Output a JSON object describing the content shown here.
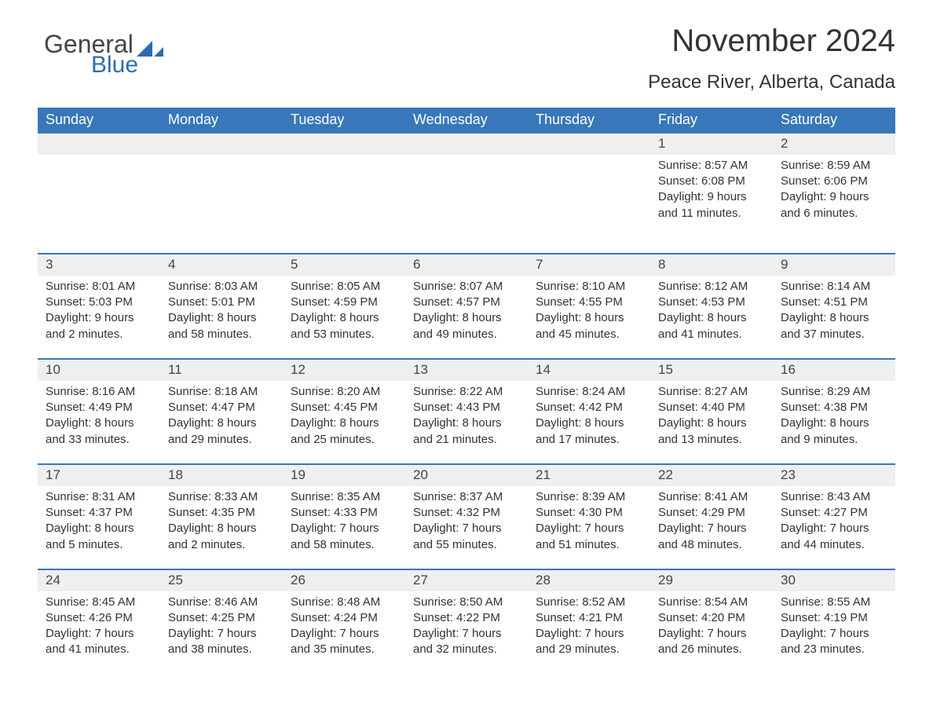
{
  "logo": {
    "text1": "General",
    "text2": "Blue",
    "accent_color": "#2d6bb0"
  },
  "title": "November 2024",
  "location": "Peace River, Alberta, Canada",
  "header_bg": "#3877b9",
  "header_fg": "#ffffff",
  "daynum_bg": "#efefef",
  "daynum_border": "#3877b9",
  "text_color": "#333333",
  "weekdays": [
    "Sunday",
    "Monday",
    "Tuesday",
    "Wednesday",
    "Thursday",
    "Friday",
    "Saturday"
  ],
  "weeks": [
    [
      null,
      null,
      null,
      null,
      null,
      {
        "day": "1",
        "sunrise": "Sunrise: 8:57 AM",
        "sunset": "Sunset: 6:08 PM",
        "day1": "Daylight: 9 hours",
        "day2": "and 11 minutes."
      },
      {
        "day": "2",
        "sunrise": "Sunrise: 8:59 AM",
        "sunset": "Sunset: 6:06 PM",
        "day1": "Daylight: 9 hours",
        "day2": "and 6 minutes."
      }
    ],
    [
      {
        "day": "3",
        "sunrise": "Sunrise: 8:01 AM",
        "sunset": "Sunset: 5:03 PM",
        "day1": "Daylight: 9 hours",
        "day2": "and 2 minutes."
      },
      {
        "day": "4",
        "sunrise": "Sunrise: 8:03 AM",
        "sunset": "Sunset: 5:01 PM",
        "day1": "Daylight: 8 hours",
        "day2": "and 58 minutes."
      },
      {
        "day": "5",
        "sunrise": "Sunrise: 8:05 AM",
        "sunset": "Sunset: 4:59 PM",
        "day1": "Daylight: 8 hours",
        "day2": "and 53 minutes."
      },
      {
        "day": "6",
        "sunrise": "Sunrise: 8:07 AM",
        "sunset": "Sunset: 4:57 PM",
        "day1": "Daylight: 8 hours",
        "day2": "and 49 minutes."
      },
      {
        "day": "7",
        "sunrise": "Sunrise: 8:10 AM",
        "sunset": "Sunset: 4:55 PM",
        "day1": "Daylight: 8 hours",
        "day2": "and 45 minutes."
      },
      {
        "day": "8",
        "sunrise": "Sunrise: 8:12 AM",
        "sunset": "Sunset: 4:53 PM",
        "day1": "Daylight: 8 hours",
        "day2": "and 41 minutes."
      },
      {
        "day": "9",
        "sunrise": "Sunrise: 8:14 AM",
        "sunset": "Sunset: 4:51 PM",
        "day1": "Daylight: 8 hours",
        "day2": "and 37 minutes."
      }
    ],
    [
      {
        "day": "10",
        "sunrise": "Sunrise: 8:16 AM",
        "sunset": "Sunset: 4:49 PM",
        "day1": "Daylight: 8 hours",
        "day2": "and 33 minutes."
      },
      {
        "day": "11",
        "sunrise": "Sunrise: 8:18 AM",
        "sunset": "Sunset: 4:47 PM",
        "day1": "Daylight: 8 hours",
        "day2": "and 29 minutes."
      },
      {
        "day": "12",
        "sunrise": "Sunrise: 8:20 AM",
        "sunset": "Sunset: 4:45 PM",
        "day1": "Daylight: 8 hours",
        "day2": "and 25 minutes."
      },
      {
        "day": "13",
        "sunrise": "Sunrise: 8:22 AM",
        "sunset": "Sunset: 4:43 PM",
        "day1": "Daylight: 8 hours",
        "day2": "and 21 minutes."
      },
      {
        "day": "14",
        "sunrise": "Sunrise: 8:24 AM",
        "sunset": "Sunset: 4:42 PM",
        "day1": "Daylight: 8 hours",
        "day2": "and 17 minutes."
      },
      {
        "day": "15",
        "sunrise": "Sunrise: 8:27 AM",
        "sunset": "Sunset: 4:40 PM",
        "day1": "Daylight: 8 hours",
        "day2": "and 13 minutes."
      },
      {
        "day": "16",
        "sunrise": "Sunrise: 8:29 AM",
        "sunset": "Sunset: 4:38 PM",
        "day1": "Daylight: 8 hours",
        "day2": "and 9 minutes."
      }
    ],
    [
      {
        "day": "17",
        "sunrise": "Sunrise: 8:31 AM",
        "sunset": "Sunset: 4:37 PM",
        "day1": "Daylight: 8 hours",
        "day2": "and 5 minutes."
      },
      {
        "day": "18",
        "sunrise": "Sunrise: 8:33 AM",
        "sunset": "Sunset: 4:35 PM",
        "day1": "Daylight: 8 hours",
        "day2": "and 2 minutes."
      },
      {
        "day": "19",
        "sunrise": "Sunrise: 8:35 AM",
        "sunset": "Sunset: 4:33 PM",
        "day1": "Daylight: 7 hours",
        "day2": "and 58 minutes."
      },
      {
        "day": "20",
        "sunrise": "Sunrise: 8:37 AM",
        "sunset": "Sunset: 4:32 PM",
        "day1": "Daylight: 7 hours",
        "day2": "and 55 minutes."
      },
      {
        "day": "21",
        "sunrise": "Sunrise: 8:39 AM",
        "sunset": "Sunset: 4:30 PM",
        "day1": "Daylight: 7 hours",
        "day2": "and 51 minutes."
      },
      {
        "day": "22",
        "sunrise": "Sunrise: 8:41 AM",
        "sunset": "Sunset: 4:29 PM",
        "day1": "Daylight: 7 hours",
        "day2": "and 48 minutes."
      },
      {
        "day": "23",
        "sunrise": "Sunrise: 8:43 AM",
        "sunset": "Sunset: 4:27 PM",
        "day1": "Daylight: 7 hours",
        "day2": "and 44 minutes."
      }
    ],
    [
      {
        "day": "24",
        "sunrise": "Sunrise: 8:45 AM",
        "sunset": "Sunset: 4:26 PM",
        "day1": "Daylight: 7 hours",
        "day2": "and 41 minutes."
      },
      {
        "day": "25",
        "sunrise": "Sunrise: 8:46 AM",
        "sunset": "Sunset: 4:25 PM",
        "day1": "Daylight: 7 hours",
        "day2": "and 38 minutes."
      },
      {
        "day": "26",
        "sunrise": "Sunrise: 8:48 AM",
        "sunset": "Sunset: 4:24 PM",
        "day1": "Daylight: 7 hours",
        "day2": "and 35 minutes."
      },
      {
        "day": "27",
        "sunrise": "Sunrise: 8:50 AM",
        "sunset": "Sunset: 4:22 PM",
        "day1": "Daylight: 7 hours",
        "day2": "and 32 minutes."
      },
      {
        "day": "28",
        "sunrise": "Sunrise: 8:52 AM",
        "sunset": "Sunset: 4:21 PM",
        "day1": "Daylight: 7 hours",
        "day2": "and 29 minutes."
      },
      {
        "day": "29",
        "sunrise": "Sunrise: 8:54 AM",
        "sunset": "Sunset: 4:20 PM",
        "day1": "Daylight: 7 hours",
        "day2": "and 26 minutes."
      },
      {
        "day": "30",
        "sunrise": "Sunrise: 8:55 AM",
        "sunset": "Sunset: 4:19 PM",
        "day1": "Daylight: 7 hours",
        "day2": "and 23 minutes."
      }
    ]
  ]
}
